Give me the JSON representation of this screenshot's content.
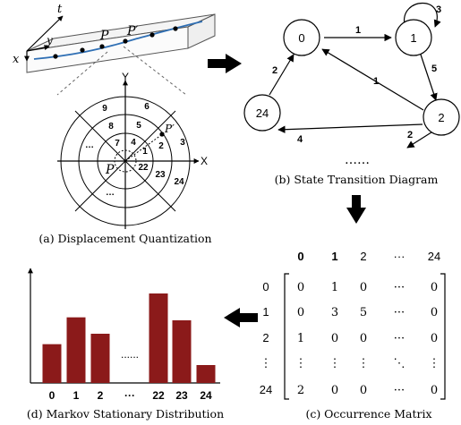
{
  "panels": {
    "a": {
      "caption": "(a) Displacement Quantization"
    },
    "b": {
      "caption": "(b) State Transition Diagram"
    },
    "c": {
      "caption": "(c) Occurrence Matrix"
    },
    "d": {
      "caption": "(d) Markov Stationary Distribution"
    }
  },
  "trajectory": {
    "axis_t": "t",
    "axis_y": "y",
    "axis_x": "x",
    "point_p": "P",
    "point_p_prime": "P′"
  },
  "polar": {
    "axis_y": "Y",
    "axis_x": "X",
    "point_p": "P",
    "point_p_prime": "P′",
    "sector_labels": [
      "9",
      "6",
      "8",
      "5",
      "7",
      "4",
      "1",
      "2",
      "3",
      "…",
      "22",
      "23",
      "24",
      "…"
    ]
  },
  "state_diagram": {
    "nodes": [
      "0",
      "1",
      "24",
      "2"
    ],
    "edges": [
      {
        "from": "0",
        "to": "1",
        "label": "1"
      },
      {
        "from": "1",
        "to": "1",
        "label": "3"
      },
      {
        "from": "1",
        "to": "2",
        "label": "5"
      },
      {
        "from": "2",
        "to": "0",
        "label": "1"
      },
      {
        "from": "24",
        "to": "0",
        "label": "2"
      },
      {
        "from": "2",
        "to": "24",
        "label": "4"
      },
      {
        "from": "2",
        "to": "…",
        "label": "2"
      }
    ],
    "ellipsis": "……"
  },
  "matrix": {
    "col_headers": [
      "0",
      "1",
      "2",
      "···",
      "24"
    ],
    "row_headers": [
      "0",
      "1",
      "2",
      "⋮",
      "24"
    ],
    "rows": [
      [
        "0",
        "1",
        "0",
        "···",
        "0"
      ],
      [
        "0",
        "3",
        "5",
        "···",
        "0"
      ],
      [
        "1",
        "0",
        "0",
        "···",
        "0"
      ],
      [
        "⋮",
        "⋮",
        "⋮",
        "⋱",
        "⋮"
      ],
      [
        "2",
        "0",
        "0",
        "···",
        "0"
      ]
    ]
  },
  "chart_data": {
    "type": "bar",
    "categories": [
      "0",
      "1",
      "2",
      "···",
      "22",
      "23",
      "24"
    ],
    "values": [
      0.26,
      0.44,
      0.33,
      null,
      0.6,
      0.42,
      0.12
    ],
    "gap_marker": "......",
    "ylim": [
      0,
      0.72
    ],
    "bar_color": "#8b1a1a"
  },
  "colors": {
    "trajectory": "#2f6fb4",
    "bar": "#8b1a1a",
    "line": "#000000"
  }
}
